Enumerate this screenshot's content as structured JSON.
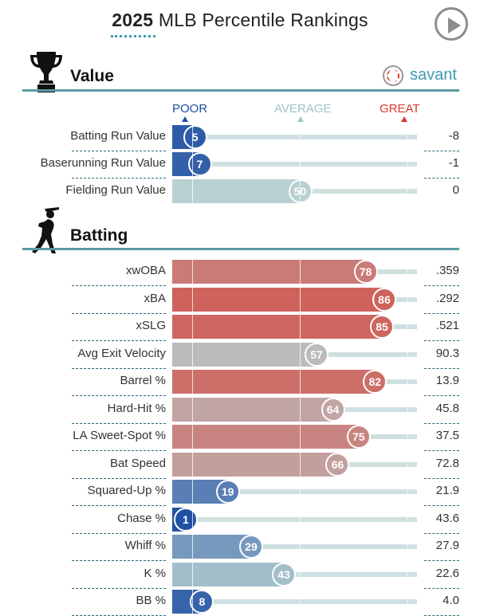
{
  "title": {
    "year": "2025",
    "rest": "MLB Percentile Rankings"
  },
  "icons": {
    "play": "play-icon",
    "trophy": "trophy-icon",
    "batter": "batter-icon",
    "baseball": "baseball-icon"
  },
  "brand": {
    "savant": "savant"
  },
  "scale": {
    "poor": "POOR",
    "average": "AVERAGE",
    "great": "GREAT"
  },
  "colors": {
    "poor": "#1f4ea3",
    "average": "#b8d0d1",
    "great": "#d8382f",
    "accent": "#5a9ca1",
    "savant": "#3d9bb0"
  },
  "sections": {
    "value": {
      "title": "Value",
      "rows": [
        {
          "label": "Batting Run Value",
          "percentile": 5,
          "value": "-8"
        },
        {
          "label": "Baserunning Run Value",
          "percentile": 7,
          "value": "-1"
        },
        {
          "label": "Fielding Run Value",
          "percentile": 50,
          "value": "0"
        }
      ]
    },
    "batting": {
      "title": "Batting",
      "rows": [
        {
          "label": "xwOBA",
          "percentile": 78,
          "value": ".359"
        },
        {
          "label": "xBA",
          "percentile": 86,
          "value": ".292"
        },
        {
          "label": "xSLG",
          "percentile": 85,
          "value": ".521"
        },
        {
          "label": "Avg Exit Velocity",
          "percentile": 57,
          "value": "90.3"
        },
        {
          "label": "Barrel %",
          "percentile": 82,
          "value": "13.9"
        },
        {
          "label": "Hard-Hit %",
          "percentile": 64,
          "value": "45.8"
        },
        {
          "label": "LA Sweet-Spot %",
          "percentile": 75,
          "value": "37.5"
        },
        {
          "label": "Bat Speed",
          "percentile": 66,
          "value": "72.8"
        },
        {
          "label": "Squared-Up %",
          "percentile": 19,
          "value": "21.9"
        },
        {
          "label": "Chase %",
          "percentile": 1,
          "value": "43.6"
        },
        {
          "label": "Whiff %",
          "percentile": 29,
          "value": "27.9"
        },
        {
          "label": "K %",
          "percentile": 43,
          "value": "22.6"
        },
        {
          "label": "BB %",
          "percentile": 8,
          "value": "4.0"
        }
      ]
    }
  }
}
